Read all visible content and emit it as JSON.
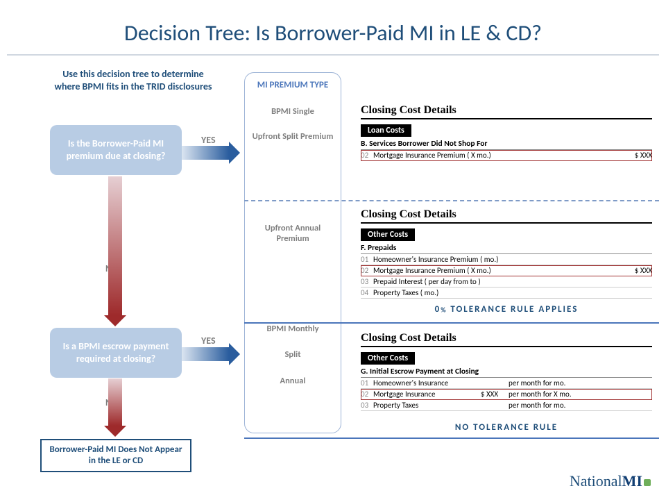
{
  "title": "Decision Tree: Is Borrower-Paid MI in LE & CD?",
  "intro": "Use this decision tree to determine where BPMI fits in the TRID disclosures",
  "q1": "Is the Borrower-Paid MI premium due at closing?",
  "q2": "Is a BPMI escrow payment required at closing?",
  "terminal": "Borrower-Paid MI Does Not Appear in the LE or CD",
  "yes": "YES",
  "no": "NO",
  "premium_col": {
    "header": "MI PREMIUM TYPE",
    "g1a": "BPMI Single",
    "g1b": "Upfront Split Premium",
    "g2": "Upfront Annual Premium",
    "g3a": "BPMI Monthly",
    "g3b": "Split",
    "g3c": "Annual"
  },
  "cards": {
    "ccd": "Closing Cost Details",
    "loan_costs": "Loan Costs",
    "other_costs": "Other Costs",
    "sectionB": "B. Services Borrower Did Not Shop For",
    "sectionF": "F. Prepaids",
    "sectionG": "G. Initial Escrow Payment at Closing",
    "amount": "$ XXX",
    "c1_row": {
      "num": "02",
      "desc": "Mortgage Insurance Premium  ( X mo.)"
    },
    "c2_rows": [
      {
        "num": "01",
        "desc": "Homeowner's Insurance Premium   (       mo.)",
        "val": ""
      },
      {
        "num": "02",
        "desc": "Mortgage Insurance Premium  ( X mo.)",
        "val": "$ XXX",
        "hi": true
      },
      {
        "num": "03",
        "desc": "Prepaid Interest   (          per day from               to               )",
        "val": ""
      },
      {
        "num": "04",
        "desc": "Property Taxes  (      mo.)",
        "val": ""
      }
    ],
    "c3_rows": [
      {
        "num": "01",
        "desc": "Homeowner's Insurance",
        "mid": "",
        "tail": "per month for       mo."
      },
      {
        "num": "02",
        "desc": "Mortgage Insurance",
        "mid": "$ XXX",
        "tail": "per month for  X mo.",
        "hi": true
      },
      {
        "num": "03",
        "desc": "Property Taxes",
        "mid": "",
        "tail": "per month for       mo."
      }
    ]
  },
  "tolerance1_a": "0",
  "tolerance1_b": "%",
  "tolerance1_c": " TOLERANCE RULE APPLIES",
  "tolerance2": "NO TOLERANCE RULE",
  "logo_a": "National",
  "logo_b": "MI"
}
